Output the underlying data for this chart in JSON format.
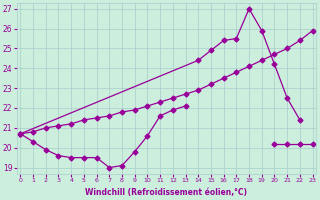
{
  "xlabel": "Windchill (Refroidissement éolien,°C)",
  "bg_color": "#cceedd",
  "line_color": "#990099",
  "grid_color": "#aacccc",
  "l1x": [
    0,
    1,
    2,
    3,
    4,
    5,
    6,
    7,
    8,
    9,
    10,
    11,
    12,
    13
  ],
  "l1y": [
    20.7,
    20.3,
    19.9,
    19.6,
    19.5,
    19.5,
    19.5,
    19.0,
    19.1,
    19.8,
    20.6,
    21.6,
    21.9,
    22.1
  ],
  "l2x": [
    0,
    1,
    2,
    3,
    4,
    5,
    6,
    7,
    8,
    9,
    10,
    11,
    12,
    13,
    14,
    15,
    16,
    17,
    18,
    19,
    20,
    21,
    22,
    23
  ],
  "l2y": [
    20.7,
    20.8,
    21.0,
    21.1,
    21.2,
    21.4,
    21.5,
    21.6,
    21.8,
    21.9,
    22.1,
    22.3,
    22.5,
    22.7,
    22.9,
    23.2,
    23.5,
    23.8,
    24.1,
    24.4,
    24.7,
    25.0,
    25.4,
    25.9
  ],
  "l3x": [
    0,
    14,
    15,
    16,
    17,
    18,
    19,
    20,
    21,
    22
  ],
  "l3y": [
    20.7,
    24.4,
    24.9,
    25.4,
    25.5,
    27.0,
    25.9,
    24.2,
    22.5,
    21.4
  ],
  "l4x": [
    20,
    21,
    22,
    23
  ],
  "l4y": [
    20.2,
    20.2,
    20.2,
    20.2
  ],
  "yticks": [
    19,
    20,
    21,
    22,
    23,
    24,
    25,
    26,
    27
  ],
  "xlim": [
    -0.3,
    23.3
  ],
  "ylim": [
    18.7,
    27.3
  ]
}
